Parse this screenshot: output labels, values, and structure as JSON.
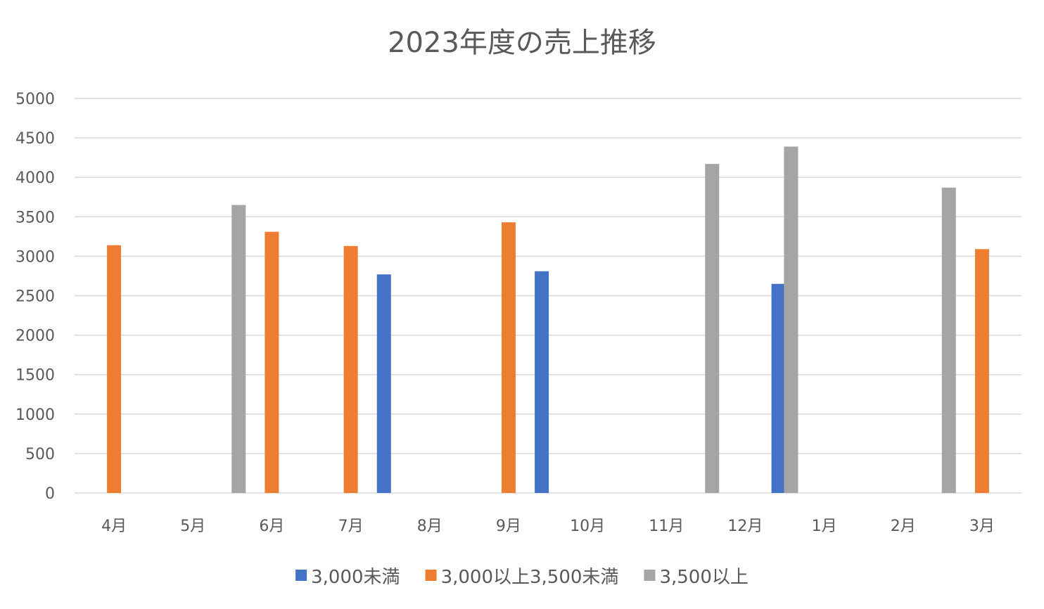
{
  "chart_data": {
    "type": "bar",
    "title": "2023年度の売上推移",
    "xlabel": "",
    "ylabel": "",
    "ylim": [
      0,
      5000
    ],
    "yticks": [
      0,
      500,
      1000,
      1500,
      2000,
      2500,
      3000,
      3500,
      4000,
      4500,
      5000
    ],
    "grid": true,
    "legend_position": "bottom",
    "categories": [
      "4月",
      "5月",
      "6月",
      "7月",
      "8月",
      "9月",
      "10月",
      "11月",
      "12月",
      "1月",
      "2月",
      "3月"
    ],
    "series": [
      {
        "name": "3,000未満",
        "color": "#4472C4",
        "values": [
          null,
          null,
          null,
          null,
          2770,
          null,
          2810,
          null,
          null,
          2650,
          null,
          null
        ]
      },
      {
        "name": "3,000以上3,500未満",
        "color": "#ED7D31",
        "values": [
          3140,
          null,
          3310,
          3130,
          null,
          3430,
          null,
          null,
          null,
          null,
          null,
          3090
        ]
      },
      {
        "name": "3,500以上",
        "color": "#A5A5A5",
        "values": [
          null,
          3650,
          null,
          null,
          null,
          null,
          null,
          4170,
          4390,
          null,
          3870,
          null
        ]
      }
    ]
  }
}
